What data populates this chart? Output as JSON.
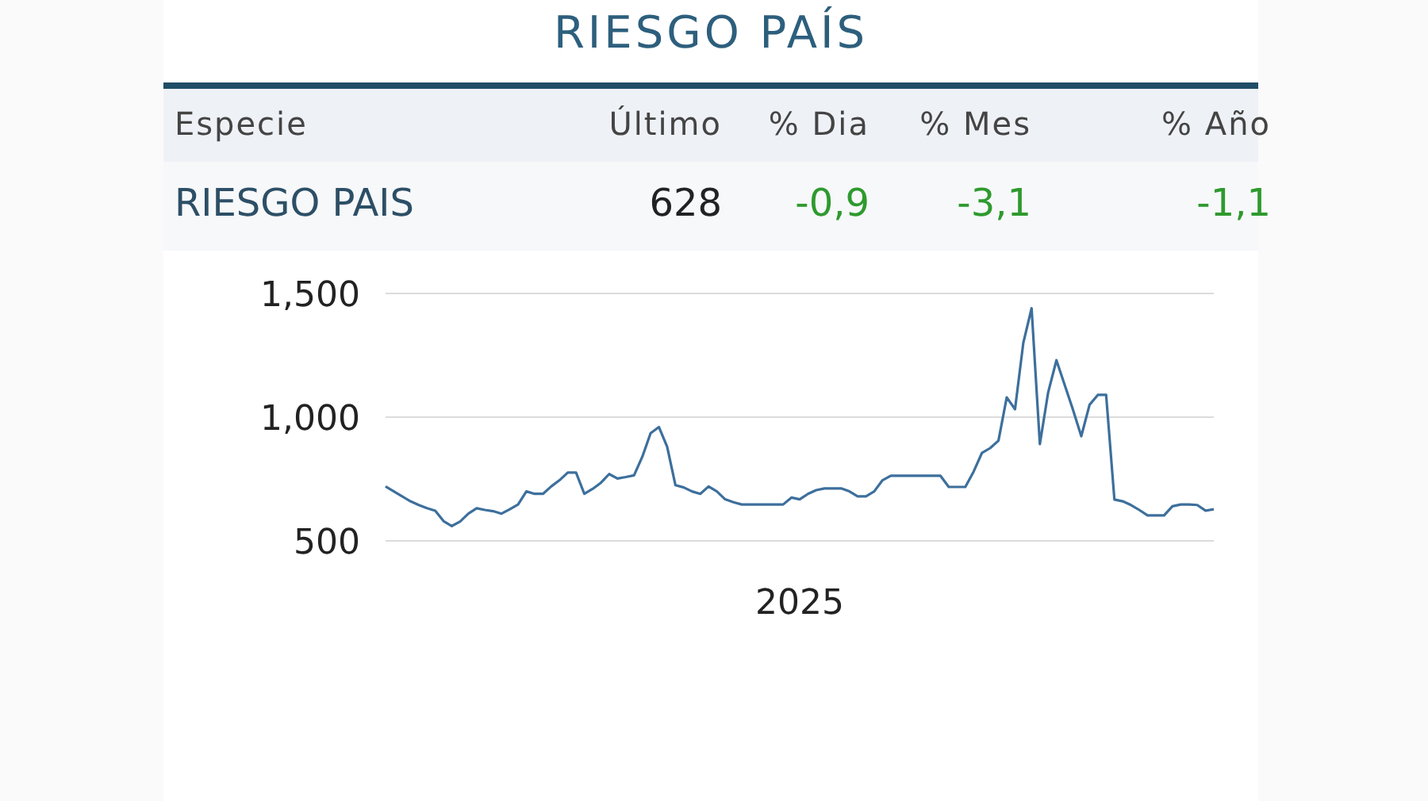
{
  "chart_data": {
    "type": "line",
    "title": "RIESGO PAÍS",
    "annotations": [
      "Especie",
      "Último",
      "% Dia",
      "% Mes",
      "% Año",
      "RIESGO PAIS",
      "628",
      "-0,9",
      "-3,1",
      "-1,1"
    ],
    "xlabel": "2025",
    "categories": [
      null,
      null,
      null,
      null,
      null,
      null,
      null,
      null,
      null,
      null,
      null,
      null,
      null,
      null,
      null,
      null,
      null,
      null,
      null,
      null,
      null,
      null,
      null,
      null,
      null,
      null,
      null,
      null,
      null,
      null,
      null,
      null,
      null,
      null,
      null,
      null,
      null,
      null,
      null,
      null,
      null,
      null,
      null,
      null,
      null,
      null,
      null,
      null,
      null,
      null,
      null,
      null,
      null,
      null,
      null,
      null,
      null,
      null,
      null,
      null,
      null,
      null,
      null,
      null,
      null,
      null,
      null,
      null,
      null,
      null,
      null,
      null,
      null,
      null,
      null,
      null,
      null,
      null,
      null,
      null,
      null,
      null,
      null,
      null,
      null,
      null,
      null,
      null,
      null,
      null,
      null,
      null,
      null,
      null,
      null,
      null,
      null,
      null,
      null,
      null,
      null
    ],
    "series": [
      {
        "color": "#3d6f9c",
        "values": [
          720,
          700,
          680,
          660,
          645,
          632,
          622,
          580,
          560,
          578,
          610,
          632,
          625,
          620,
          610,
          628,
          647,
          700,
          690,
          690,
          720,
          745,
          776,
          776,
          690,
          710,
          735,
          770,
          752,
          758,
          765,
          840,
          935,
          960,
          880,
          725,
          716,
          700,
          690,
          720,
          700,
          668,
          656,
          647,
          647,
          647,
          647,
          647,
          647,
          675,
          668,
          690,
          705,
          712,
          712,
          712,
          700,
          680,
          680,
          700,
          745,
          763,
          763,
          763,
          763,
          763,
          763,
          763,
          718,
          718,
          718,
          780,
          855,
          875,
          905,
          1080,
          1032,
          1300,
          1440,
          891,
          1100,
          1230,
          1130,
          1030,
          923,
          1050,
          1090,
          1090,
          667,
          660,
          645,
          625,
          603,
          603,
          603,
          640,
          647,
          647,
          645,
          622,
          628
        ]
      }
    ],
    "ylim": [
      500,
      1500
    ],
    "yticks": [
      {
        "value": 500,
        "label": "500"
      },
      {
        "value": 1000,
        "label": "1,000"
      },
      {
        "value": 1500,
        "label": "1,500"
      }
    ],
    "grid": "y",
    "legend": false,
    "marker": "none",
    "line_style": "solid"
  }
}
